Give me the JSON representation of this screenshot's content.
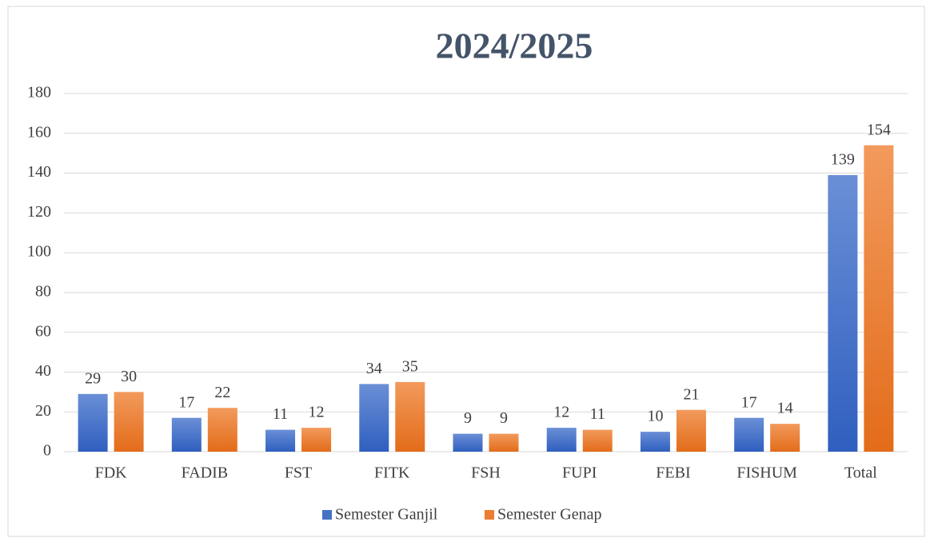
{
  "chart_data": {
    "type": "bar",
    "title": "2024/2025",
    "categories": [
      "FDK",
      "FADIB",
      "FST",
      "FITK",
      "FSH",
      "FUPI",
      "FEBI",
      "FISHUM",
      "Total"
    ],
    "series": [
      {
        "name": "Semester Ganjil",
        "color": "#4472c4",
        "values": [
          29,
          17,
          11,
          34,
          9,
          12,
          10,
          17,
          139
        ]
      },
      {
        "name": "Semester Genap",
        "color": "#ed7d31",
        "values": [
          30,
          22,
          12,
          35,
          9,
          11,
          21,
          14,
          154
        ]
      }
    ],
    "ylim": [
      0,
      180
    ],
    "yticks": [
      0,
      20,
      40,
      60,
      80,
      100,
      120,
      140,
      160,
      180
    ],
    "grid": true,
    "legend": "bottom"
  }
}
